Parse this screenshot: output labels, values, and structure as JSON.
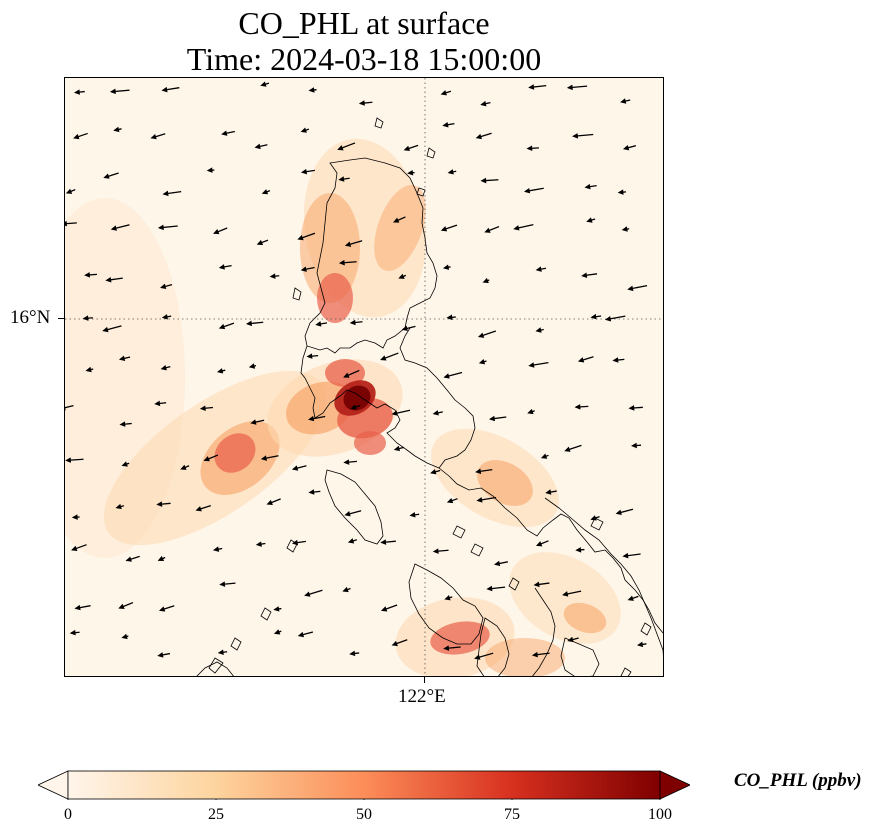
{
  "title": {
    "line1": "CO_PHL at surface",
    "line2": "Time: 2024-03-18 15:00:00"
  },
  "axes": {
    "lat_label": "16°N",
    "lon_label": "122°E"
  },
  "colorbar": {
    "label": "CO_PHL (ppbv)",
    "min": 0,
    "max": 100,
    "ticks": [
      "0",
      "25",
      "50",
      "75",
      "100"
    ],
    "colors": [
      "#fff5eb",
      "#fdd49e",
      "#fc8d59",
      "#d7301f",
      "#7f0000"
    ],
    "extend": "both"
  },
  "map": {
    "gridlines": "dotted",
    "coastlines": true,
    "wind_vectors": true,
    "hotspot_colors": [
      "#fdd9b0",
      "#f7a76c",
      "#e8604a",
      "#b5231a",
      "#7a0303"
    ]
  }
}
